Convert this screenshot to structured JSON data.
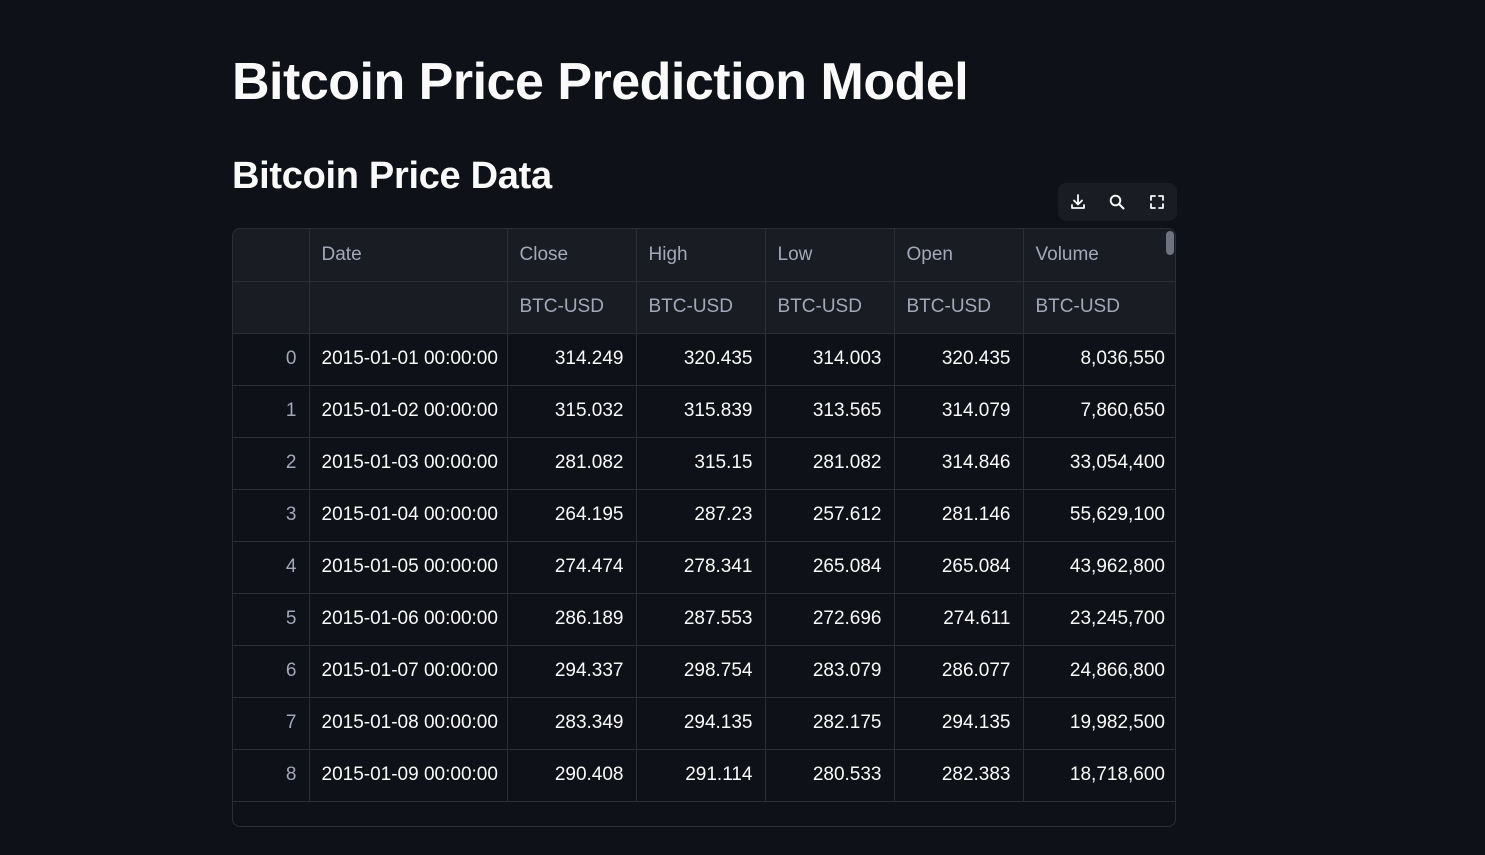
{
  "header": {
    "title": "Bitcoin Price Prediction Model",
    "subtitle": "Bitcoin Price Data"
  },
  "toolbar": {
    "icons": [
      "download-icon",
      "search-icon",
      "fullscreen-icon"
    ]
  },
  "table": {
    "columns": [
      "",
      "Date",
      "Close",
      "High",
      "Low",
      "Open",
      "Volume"
    ],
    "subheaders": [
      "",
      "",
      "BTC-USD",
      "BTC-USD",
      "BTC-USD",
      "BTC-USD",
      "BTC-USD"
    ],
    "rows": [
      {
        "idx": "0",
        "date": "2015-01-01 00:00:00",
        "close": "314.249",
        "high": "320.435",
        "low": "314.003",
        "open": "320.435",
        "volume": "8,036,550"
      },
      {
        "idx": "1",
        "date": "2015-01-02 00:00:00",
        "close": "315.032",
        "high": "315.839",
        "low": "313.565",
        "open": "314.079",
        "volume": "7,860,650"
      },
      {
        "idx": "2",
        "date": "2015-01-03 00:00:00",
        "close": "281.082",
        "high": "315.15",
        "low": "281.082",
        "open": "314.846",
        "volume": "33,054,400"
      },
      {
        "idx": "3",
        "date": "2015-01-04 00:00:00",
        "close": "264.195",
        "high": "287.23",
        "low": "257.612",
        "open": "281.146",
        "volume": "55,629,100"
      },
      {
        "idx": "4",
        "date": "2015-01-05 00:00:00",
        "close": "274.474",
        "high": "278.341",
        "low": "265.084",
        "open": "265.084",
        "volume": "43,962,800"
      },
      {
        "idx": "5",
        "date": "2015-01-06 00:00:00",
        "close": "286.189",
        "high": "287.553",
        "low": "272.696",
        "open": "274.611",
        "volume": "23,245,700"
      },
      {
        "idx": "6",
        "date": "2015-01-07 00:00:00",
        "close": "294.337",
        "high": "298.754",
        "low": "283.079",
        "open": "286.077",
        "volume": "24,866,800"
      },
      {
        "idx": "7",
        "date": "2015-01-08 00:00:00",
        "close": "283.349",
        "high": "294.135",
        "low": "282.175",
        "open": "294.135",
        "volume": "19,982,500"
      },
      {
        "idx": "8",
        "date": "2015-01-09 00:00:00",
        "close": "290.408",
        "high": "291.114",
        "low": "280.533",
        "open": "282.383",
        "volume": "18,718,600"
      }
    ]
  },
  "colors": {
    "background": "#0e1117",
    "header_bg": "#1a1c24",
    "border": "#2b2e37",
    "text": "#fafafa",
    "muted_text": "#a3a8b8"
  }
}
